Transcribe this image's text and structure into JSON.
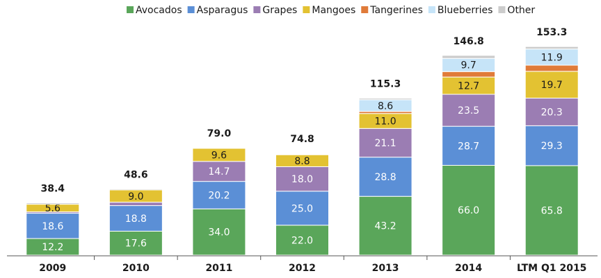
{
  "chart_data": {
    "type": "stacked_bar",
    "categories": [
      "2009",
      "2010",
      "2011",
      "2012",
      "2013",
      "2014",
      "LTM Q1 2015"
    ],
    "series": [
      {
        "name": "Avocados",
        "color": "#5aa65a",
        "values": [
          12.2,
          17.6,
          34.0,
          22.0,
          43.2,
          66.0,
          65.8
        ],
        "value_labels": [
          "12.2",
          "17.6",
          "34.0",
          "22.0",
          "43.2",
          "66.0",
          "65.8"
        ]
      },
      {
        "name": "Asparagus",
        "color": "#5b8fd6",
        "values": [
          18.6,
          18.8,
          20.2,
          25.0,
          28.8,
          28.7,
          29.3
        ],
        "value_labels": [
          "18.6",
          "18.8",
          "20.2",
          "25.0",
          "28.8",
          "28.7",
          "29.3"
        ]
      },
      {
        "name": "Grapes",
        "color": "#9b7db3",
        "values": [
          1.0,
          2.5,
          14.7,
          18.0,
          21.1,
          23.5,
          20.3
        ],
        "value_labels": [
          null,
          null,
          "14.7",
          "18.0",
          "21.1",
          "23.5",
          "20.3"
        ]
      },
      {
        "name": "Mangoes",
        "color": "#e3c232",
        "values": [
          5.6,
          9.0,
          9.6,
          8.8,
          11.0,
          12.7,
          19.7
        ],
        "value_labels": [
          "5.6",
          "9.0",
          "9.6",
          "8.8",
          "11.0",
          "12.7",
          "19.7"
        ]
      },
      {
        "name": "Tangerines",
        "color": "#e07b39",
        "values": [
          0,
          0,
          0,
          0.3,
          1.5,
          4.0,
          4.5
        ],
        "value_labels": [
          null,
          null,
          null,
          null,
          null,
          null,
          null
        ]
      },
      {
        "name": "Blueberries",
        "color": "#c6e4f8",
        "values": [
          0,
          0,
          0,
          0.4,
          8.6,
          9.7,
          11.9
        ],
        "value_labels": [
          null,
          null,
          null,
          null,
          "8.6",
          "9.7",
          "11.9"
        ]
      },
      {
        "name": "Other",
        "color": "#cccccc",
        "values": [
          1.0,
          0.7,
          0.5,
          0.3,
          1.1,
          2.2,
          1.8
        ],
        "value_labels": [
          null,
          null,
          null,
          null,
          null,
          null,
          null
        ]
      }
    ],
    "totals": [
      38.4,
      48.6,
      79.0,
      74.8,
      115.3,
      146.8,
      153.3
    ],
    "total_labels": [
      "38.4",
      "48.6",
      "79.0",
      "74.8",
      "115.3",
      "146.8",
      "153.3"
    ],
    "ylim": [
      0,
      160
    ],
    "legend": "top"
  }
}
